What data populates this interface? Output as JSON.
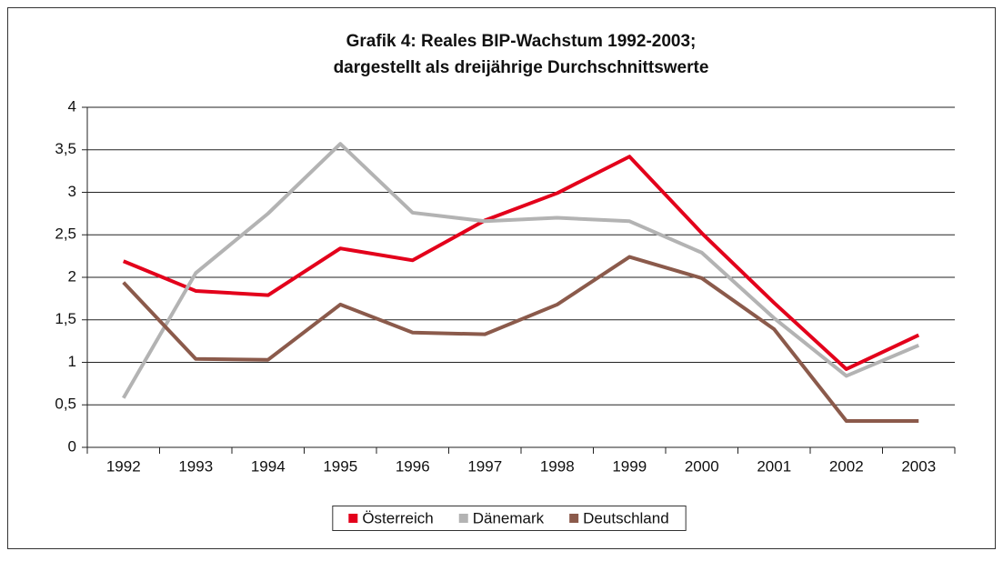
{
  "chart_data": {
    "type": "line",
    "title": [
      "Grafik 4: Reales BIP-Wachstum 1992-2003;",
      "dargestellt als dreijährige Durchschnittswerte"
    ],
    "categories": [
      "1992",
      "1993",
      "1994",
      "1995",
      "1996",
      "1997",
      "1998",
      "1999",
      "2000",
      "2001",
      "2002",
      "2003"
    ],
    "series": [
      {
        "name": "Österreich",
        "color": "#e3001b",
        "values": [
          2.19,
          1.84,
          1.79,
          2.34,
          2.2,
          2.67,
          2.99,
          3.42,
          2.52,
          1.7,
          0.92,
          1.32
        ]
      },
      {
        "name": "Dänemark",
        "color": "#b3b3b3",
        "values": [
          0.58,
          2.05,
          2.75,
          3.57,
          2.76,
          2.66,
          2.7,
          2.66,
          2.29,
          1.52,
          0.84,
          1.2
        ]
      },
      {
        "name": "Deutschland",
        "color": "#8b5a4b",
        "values": [
          1.94,
          1.04,
          1.03,
          1.68,
          1.35,
          1.33,
          1.68,
          2.24,
          1.99,
          1.39,
          0.31,
          0.31
        ]
      }
    ],
    "ylim": [
      0,
      4
    ],
    "yticks": [
      0,
      {
        "value": 0.5,
        "label": "0,5"
      },
      1,
      {
        "value": 1.5,
        "label": "1,5"
      },
      2,
      {
        "value": 2.5,
        "label": "2,5"
      },
      3,
      {
        "value": 3.5,
        "label": "3,5"
      },
      4
    ],
    "grid": true,
    "legend": "bottom"
  }
}
